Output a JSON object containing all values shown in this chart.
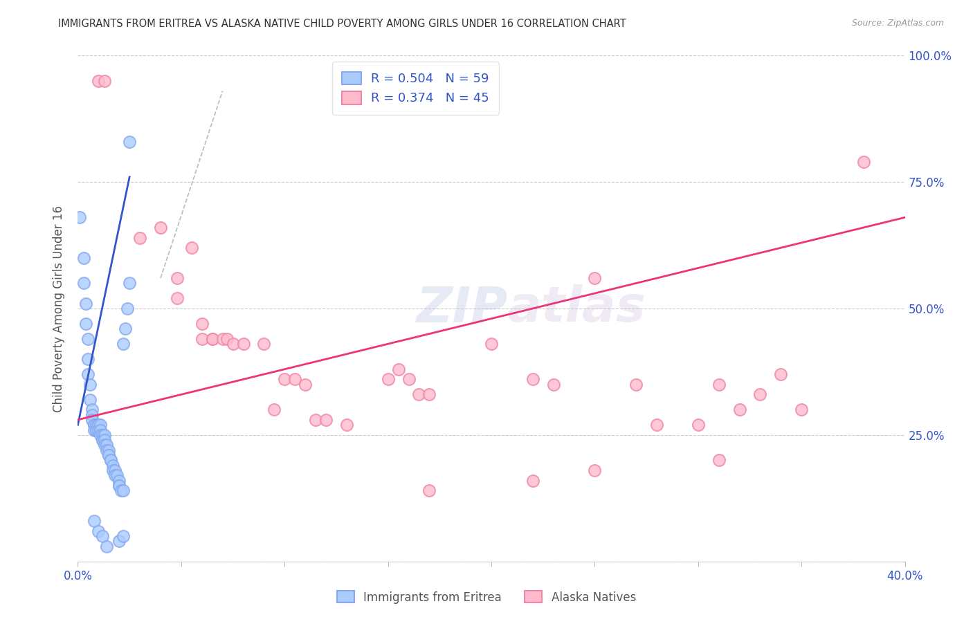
{
  "title": "IMMIGRANTS FROM ERITREA VS ALASKA NATIVE CHILD POVERTY AMONG GIRLS UNDER 16 CORRELATION CHART",
  "source": "Source: ZipAtlas.com",
  "ylabel": "Child Poverty Among Girls Under 16",
  "watermark": "ZIPatlas",
  "blue_scatter": [
    [
      0.001,
      0.68
    ],
    [
      0.003,
      0.6
    ],
    [
      0.003,
      0.55
    ],
    [
      0.004,
      0.51
    ],
    [
      0.004,
      0.47
    ],
    [
      0.005,
      0.44
    ],
    [
      0.005,
      0.4
    ],
    [
      0.005,
      0.37
    ],
    [
      0.006,
      0.35
    ],
    [
      0.006,
      0.32
    ],
    [
      0.007,
      0.3
    ],
    [
      0.007,
      0.29
    ],
    [
      0.007,
      0.28
    ],
    [
      0.008,
      0.27
    ],
    [
      0.008,
      0.27
    ],
    [
      0.008,
      0.26
    ],
    [
      0.009,
      0.26
    ],
    [
      0.009,
      0.27
    ],
    [
      0.009,
      0.26
    ],
    [
      0.01,
      0.27
    ],
    [
      0.01,
      0.27
    ],
    [
      0.01,
      0.26
    ],
    [
      0.01,
      0.26
    ],
    [
      0.011,
      0.27
    ],
    [
      0.011,
      0.26
    ],
    [
      0.011,
      0.25
    ],
    [
      0.012,
      0.25
    ],
    [
      0.012,
      0.24
    ],
    [
      0.012,
      0.24
    ],
    [
      0.013,
      0.25
    ],
    [
      0.013,
      0.24
    ],
    [
      0.013,
      0.23
    ],
    [
      0.014,
      0.23
    ],
    [
      0.014,
      0.22
    ],
    [
      0.015,
      0.22
    ],
    [
      0.015,
      0.21
    ],
    [
      0.015,
      0.21
    ],
    [
      0.016,
      0.2
    ],
    [
      0.016,
      0.2
    ],
    [
      0.017,
      0.19
    ],
    [
      0.017,
      0.18
    ],
    [
      0.018,
      0.18
    ],
    [
      0.018,
      0.17
    ],
    [
      0.019,
      0.17
    ],
    [
      0.02,
      0.16
    ],
    [
      0.02,
      0.15
    ],
    [
      0.02,
      0.15
    ],
    [
      0.021,
      0.14
    ],
    [
      0.022,
      0.14
    ],
    [
      0.022,
      0.43
    ],
    [
      0.023,
      0.46
    ],
    [
      0.024,
      0.5
    ],
    [
      0.025,
      0.55
    ],
    [
      0.008,
      0.08
    ],
    [
      0.01,
      0.06
    ],
    [
      0.012,
      0.05
    ],
    [
      0.014,
      0.03
    ],
    [
      0.02,
      0.04
    ],
    [
      0.022,
      0.05
    ],
    [
      0.025,
      0.83
    ]
  ],
  "pink_scatter": [
    [
      0.01,
      0.95
    ],
    [
      0.013,
      0.95
    ],
    [
      0.03,
      0.64
    ],
    [
      0.04,
      0.66
    ],
    [
      0.048,
      0.56
    ],
    [
      0.048,
      0.52
    ],
    [
      0.055,
      0.62
    ],
    [
      0.06,
      0.47
    ],
    [
      0.06,
      0.44
    ],
    [
      0.065,
      0.44
    ],
    [
      0.065,
      0.44
    ],
    [
      0.07,
      0.44
    ],
    [
      0.072,
      0.44
    ],
    [
      0.075,
      0.43
    ],
    [
      0.08,
      0.43
    ],
    [
      0.09,
      0.43
    ],
    [
      0.095,
      0.3
    ],
    [
      0.1,
      0.36
    ],
    [
      0.105,
      0.36
    ],
    [
      0.11,
      0.35
    ],
    [
      0.115,
      0.28
    ],
    [
      0.12,
      0.28
    ],
    [
      0.13,
      0.27
    ],
    [
      0.15,
      0.36
    ],
    [
      0.155,
      0.38
    ],
    [
      0.16,
      0.36
    ],
    [
      0.165,
      0.33
    ],
    [
      0.17,
      0.33
    ],
    [
      0.2,
      0.43
    ],
    [
      0.22,
      0.36
    ],
    [
      0.23,
      0.35
    ],
    [
      0.25,
      0.18
    ],
    [
      0.27,
      0.35
    ],
    [
      0.3,
      0.27
    ],
    [
      0.31,
      0.2
    ],
    [
      0.32,
      0.3
    ],
    [
      0.33,
      0.33
    ],
    [
      0.34,
      0.37
    ],
    [
      0.25,
      0.56
    ],
    [
      0.28,
      0.27
    ],
    [
      0.35,
      0.3
    ],
    [
      0.38,
      0.79
    ],
    [
      0.31,
      0.35
    ],
    [
      0.22,
      0.16
    ],
    [
      0.17,
      0.14
    ]
  ],
  "blue_line": {
    "x": [
      0.0,
      0.025
    ],
    "y": [
      0.27,
      0.76
    ]
  },
  "pink_line": {
    "x": [
      0.0,
      0.4
    ],
    "y": [
      0.28,
      0.68
    ]
  },
  "diag_line": {
    "x": [
      0.04,
      0.07
    ],
    "y": [
      0.56,
      0.93
    ]
  },
  "xlim": [
    0,
    0.4
  ],
  "ylim": [
    0,
    1.0
  ],
  "figsize": [
    14.06,
    8.92
  ],
  "dpi": 100
}
